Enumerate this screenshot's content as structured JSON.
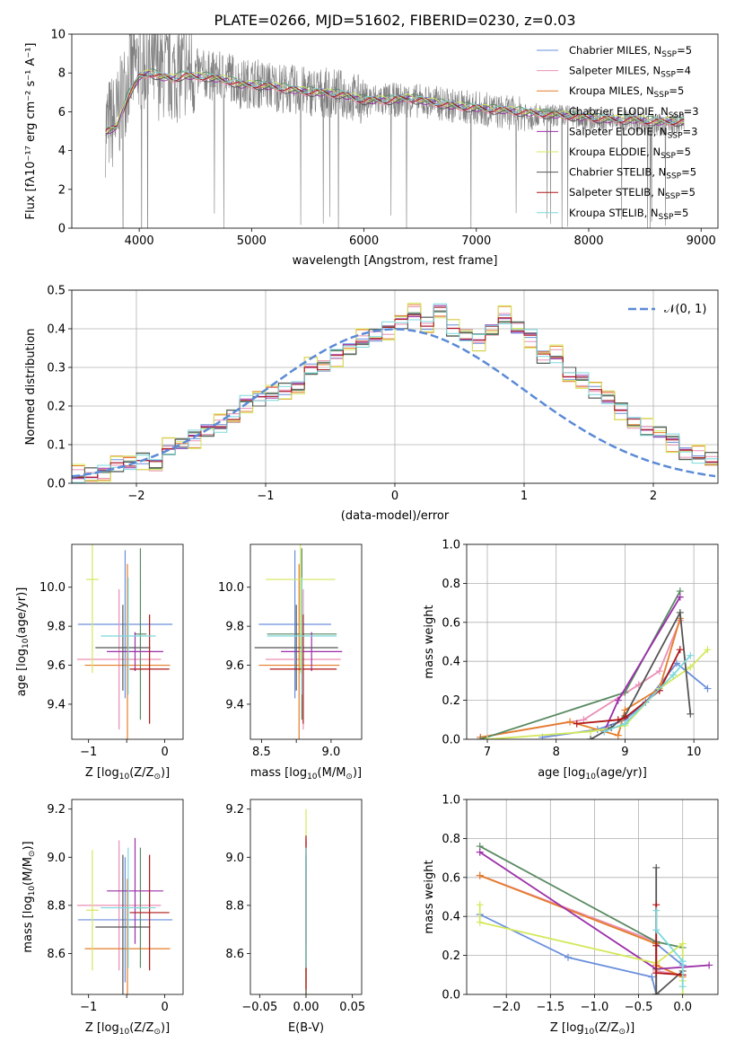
{
  "figure": {
    "title": "PLATE=0266, MJD=51602, FIBERID=0230, z=0.03"
  },
  "series_names": [
    "Chabrier MILES, N_SSP=5",
    "Salpeter MILES, N_SSP=4",
    "Kroupa MILES, N_SSP=5",
    "Chabrier ELODIE, N_SSP=3",
    "Salpeter ELODIE, N_SSP=3",
    "Kroupa ELODIE, N_SSP=5",
    "Chabrier STELIB, N_SSP=5",
    "Salpeter STELIB, N_SSP=5",
    "Kroupa STELIB, N_SSP=5"
  ],
  "series_colors": [
    "#6a8fdc",
    "#ea8fb4",
    "#e57d28",
    "#5a8a63",
    "#9b2fa8",
    "#d4e85a",
    "#555555",
    "#b01515",
    "#7ad8dc"
  ],
  "chart_data": [
    {
      "type": "line",
      "title": "PLATE=0266, MJD=51602, FIBERID=0230, z=0.03",
      "xlabel": "wavelength [Angstrom, rest frame]",
      "ylabel": "Flux [fλ10⁻¹⁷ erg cm⁻² s⁻¹ A⁻¹]",
      "xlim": [
        3400,
        9150
      ],
      "ylim": [
        0,
        10
      ],
      "xticks": [
        4000,
        5000,
        6000,
        7000,
        8000,
        9000
      ],
      "yticks": [
        0,
        2,
        4,
        6,
        8,
        10
      ],
      "grid": false,
      "legend_position": "top-right",
      "legend": [
        {
          "pre": "Chabrier MILES, N",
          "sub": "SSP",
          "post": "=5"
        },
        {
          "pre": "Salpeter MILES, N",
          "sub": "SSP",
          "post": "=4"
        },
        {
          "pre": "Kroupa MILES, N",
          "sub": "SSP",
          "post": "=5"
        },
        {
          "pre": "Chabrier ELODIE, N",
          "sub": "SSP",
          "post": "=3"
        },
        {
          "pre": "Salpeter ELODIE, N",
          "sub": "SSP",
          "post": "=3"
        },
        {
          "pre": "Kroupa ELODIE, N",
          "sub": "SSP",
          "post": "=5"
        },
        {
          "pre": "Chabrier STELIB, N",
          "sub": "SSP",
          "post": "=5"
        },
        {
          "pre": "Salpeter STELIB, N",
          "sub": "SSP",
          "post": "=5"
        },
        {
          "pre": "Kroupa STELIB, N",
          "sub": "SSP",
          "post": "=5"
        }
      ],
      "data_wavelength": [
        3700,
        3800,
        3900,
        4000,
        4100,
        4200,
        4300,
        4400,
        4500,
        4600,
        4700,
        4800,
        4900,
        5000,
        5200,
        5400,
        5600,
        5800,
        6000,
        6200,
        6400,
        6600,
        6800,
        7000,
        7200,
        7400,
        7600,
        7800,
        8000,
        8200,
        8400,
        8600,
        8800
      ],
      "data_flux": [
        5.2,
        5.6,
        7.8,
        8.6,
        8.2,
        8.1,
        7.9,
        8.2,
        8.0,
        7.9,
        7.8,
        7.9,
        7.4,
        7.5,
        7.3,
        7.1,
        7.0,
        6.9,
        6.6,
        6.6,
        6.6,
        6.5,
        6.3,
        6.2,
        6.0,
        5.9,
        5.8,
        5.8,
        5.6,
        5.5,
        5.6,
        5.3,
        5.4
      ],
      "model_flux": [
        5.0,
        5.2,
        6.8,
        7.8,
        8.0,
        7.8,
        7.7,
        7.9,
        7.8,
        7.8,
        7.7,
        7.6,
        7.4,
        7.4,
        7.3,
        7.1,
        7.0,
        6.9,
        6.6,
        6.6,
        6.7,
        6.5,
        6.3,
        6.2,
        6.1,
        6.0,
        5.9,
        5.8,
        5.7,
        5.6,
        5.6,
        5.5,
        5.5
      ]
    },
    {
      "type": "step",
      "xlabel": "(data-model)/error",
      "ylabel": "Normed distribution",
      "xlim": [
        -2.5,
        2.5
      ],
      "ylim": [
        0,
        0.5
      ],
      "xticks": [
        -2,
        -1,
        0,
        1,
        2
      ],
      "yticks": [
        0.0,
        0.1,
        0.2,
        0.3,
        0.4,
        0.5
      ],
      "grid": true,
      "legend_position": "top-right",
      "reference_curve": {
        "name": "N(0,1)",
        "label": "𝒩(0, 1)"
      },
      "bin_edges_start": -2.5,
      "bin_width": 0.1,
      "histogram_values": [
        0.02,
        0.02,
        0.03,
        0.05,
        0.05,
        0.06,
        0.05,
        0.09,
        0.1,
        0.12,
        0.14,
        0.15,
        0.17,
        0.21,
        0.22,
        0.23,
        0.24,
        0.25,
        0.3,
        0.3,
        0.33,
        0.35,
        0.37,
        0.38,
        0.4,
        0.42,
        0.44,
        0.41,
        0.45,
        0.4,
        0.38,
        0.37,
        0.4,
        0.43,
        0.4,
        0.38,
        0.33,
        0.33,
        0.28,
        0.27,
        0.24,
        0.22,
        0.19,
        0.16,
        0.14,
        0.13,
        0.11,
        0.08,
        0.07,
        0.06,
        0.05,
        0.04,
        0.03,
        0.02,
        0.02
      ]
    },
    {
      "type": "errorbar",
      "xlabel_pre": "Z [log",
      "xlabel_sub": "10",
      "xlabel_post": "(Z/Z",
      "xlabel_end": ")]",
      "ylabel_pre": "age  [log",
      "ylabel_sub": "10",
      "ylabel_post": "(age/yr)]",
      "xlim": [
        -1.22,
        0.24
      ],
      "ylim": [
        9.22,
        10.22
      ],
      "xticks": [
        -1,
        -0.5,
        0
      ],
      "xtick_labels": [
        "−1",
        "",
        "0"
      ],
      "yticks": [
        9.4,
        9.6,
        9.8,
        10.0
      ],
      "grid": false,
      "points": [
        {
          "x": -0.52,
          "y": 9.81,
          "xerr": 0.62,
          "yerr": 0.38
        },
        {
          "x": -0.6,
          "y": 9.63,
          "xerr": 0.55,
          "yerr": 0.36
        },
        {
          "x": -0.49,
          "y": 9.6,
          "xerr": 0.56,
          "yerr": 0.52
        },
        {
          "x": -0.32,
          "y": 9.76,
          "xerr": 0.08,
          "yerr": 0.44
        },
        {
          "x": -0.39,
          "y": 9.67,
          "xerr": 0.37,
          "yerr": 0.1
        },
        {
          "x": -0.95,
          "y": 10.04,
          "xerr": 0.08,
          "yerr": 0.48
        },
        {
          "x": -0.55,
          "y": 9.69,
          "xerr": 0.36,
          "yerr": 0.22
        },
        {
          "x": -0.2,
          "y": 9.58,
          "xerr": 0.26,
          "yerr": 0.28
        },
        {
          "x": -0.48,
          "y": 9.75,
          "xerr": 0.36,
          "yerr": 0.3
        }
      ]
    },
    {
      "type": "errorbar",
      "xlabel_pre": "mass [log",
      "xlabel_sub": "10",
      "xlabel_post": "(M/M",
      "xlabel_end": ")]",
      "xlim": [
        8.42,
        9.22
      ],
      "ylim": [
        9.22,
        10.22
      ],
      "xticks": [
        8.5,
        8.75,
        9.0
      ],
      "xtick_labels": [
        "8.5",
        "",
        "9.0"
      ],
      "yticks": [
        9.4,
        9.6,
        9.8,
        10.0
      ],
      "grid": false,
      "points": [
        {
          "x": 8.74,
          "y": 9.81,
          "xerr": 0.26,
          "yerr": 0.38
        },
        {
          "x": 8.8,
          "y": 9.63,
          "xerr": 0.27,
          "yerr": 0.36
        },
        {
          "x": 8.77,
          "y": 9.6,
          "xerr": 0.29,
          "yerr": 0.52
        },
        {
          "x": 8.79,
          "y": 9.76,
          "xerr": 0.25,
          "yerr": 0.44
        },
        {
          "x": 8.86,
          "y": 9.67,
          "xerr": 0.22,
          "yerr": 0.1
        },
        {
          "x": 8.78,
          "y": 10.04,
          "xerr": 0.25,
          "yerr": 0.48
        },
        {
          "x": 8.75,
          "y": 9.69,
          "xerr": 0.3,
          "yerr": 0.22
        },
        {
          "x": 8.8,
          "y": 9.58,
          "xerr": 0.24,
          "yerr": 0.28
        },
        {
          "x": 8.79,
          "y": 9.75,
          "xerr": 0.25,
          "yerr": 0.3
        }
      ]
    },
    {
      "type": "line",
      "xlabel_pre": "age  [log",
      "xlabel_sub": "10",
      "xlabel_post": "(age/yr)]",
      "ylabel": "mass weight",
      "xlim": [
        6.7,
        10.35
      ],
      "ylim": [
        0,
        1.0
      ],
      "xticks": [
        7,
        8,
        9,
        10
      ],
      "yticks": [
        0.0,
        0.2,
        0.4,
        0.6,
        0.8,
        1.0
      ],
      "grid": true,
      "series": [
        {
          "x": [
            7.8,
            8.6,
            9.0,
            9.3,
            9.75,
            10.2
          ],
          "y": [
            0.01,
            0.05,
            0.1,
            0.19,
            0.39,
            0.26
          ]
        },
        {
          "x": [
            6.9,
            8.4,
            9.2,
            9.5,
            9.8
          ],
          "y": [
            0.01,
            0.1,
            0.28,
            0.35,
            0.61
          ]
        },
        {
          "x": [
            6.9,
            8.2,
            8.9,
            9.0,
            9.5,
            9.8
          ],
          "y": [
            0.01,
            0.09,
            0.02,
            0.15,
            0.26,
            0.62
          ]
        },
        {
          "x": [
            6.9,
            9.0,
            9.8
          ],
          "y": [
            0.0,
            0.24,
            0.76
          ]
        },
        {
          "x": [
            8.7,
            8.9,
            9.8
          ],
          "y": [
            0.04,
            0.2,
            0.73
          ]
        },
        {
          "x": [
            7.0,
            8.5,
            9.0,
            9.5,
            9.95,
            10.2
          ],
          "y": [
            0.0,
            0.04,
            0.07,
            0.26,
            0.37,
            0.46
          ]
        },
        {
          "x": [
            8.5,
            8.8,
            9.0,
            9.8,
            9.95
          ],
          "y": [
            0.0,
            0.06,
            0.12,
            0.65,
            0.13
          ]
        },
        {
          "x": [
            8.3,
            8.9,
            9.0,
            9.5,
            9.8
          ],
          "y": [
            0.08,
            0.1,
            0.11,
            0.25,
            0.46
          ]
        },
        {
          "x": [
            8.7,
            9.0,
            9.7,
            9.95
          ],
          "y": [
            0.04,
            0.08,
            0.33,
            0.43
          ]
        }
      ]
    },
    {
      "type": "errorbar",
      "xlabel_pre": "Z [log",
      "xlabel_sub": "10",
      "xlabel_post": "(Z/Z",
      "xlabel_end": ")]",
      "ylabel_pre": "mass [log",
      "ylabel_sub": "10",
      "ylabel_post": "(M/M",
      "ylabel_end": ")]",
      "xlim": [
        -1.22,
        0.24
      ],
      "ylim": [
        8.43,
        9.24
      ],
      "xticks": [
        -1,
        -0.5,
        0
      ],
      "xtick_labels": [
        "−1",
        "",
        "0"
      ],
      "yticks": [
        8.6,
        8.8,
        9.0,
        9.2
      ],
      "grid": false,
      "points": [
        {
          "x": -0.52,
          "y": 8.74,
          "xerr": 0.62,
          "yerr": 0.26
        },
        {
          "x": -0.6,
          "y": 8.8,
          "xerr": 0.55,
          "yerr": 0.27
        },
        {
          "x": -0.49,
          "y": 8.62,
          "xerr": 0.56,
          "yerr": 0.29
        },
        {
          "x": -0.32,
          "y": 8.79,
          "xerr": 0.08,
          "yerr": 0.25
        },
        {
          "x": -0.39,
          "y": 8.86,
          "xerr": 0.37,
          "yerr": 0.22
        },
        {
          "x": -0.95,
          "y": 8.78,
          "xerr": 0.08,
          "yerr": 0.25
        },
        {
          "x": -0.55,
          "y": 8.71,
          "xerr": 0.36,
          "yerr": 0.3
        },
        {
          "x": -0.2,
          "y": 8.77,
          "xerr": 0.26,
          "yerr": 0.24
        },
        {
          "x": -0.48,
          "y": 8.79,
          "xerr": 0.36,
          "yerr": 0.25
        }
      ]
    },
    {
      "type": "errorbar",
      "xlabel": "E(B-V)",
      "xlim": [
        -0.06,
        0.06
      ],
      "ylim": [
        8.43,
        9.24
      ],
      "xticks": [
        -0.05,
        0.0,
        0.05
      ],
      "xtick_labels": [
        "−0.05",
        "0.00",
        "0.05"
      ],
      "yticks": [
        8.6,
        8.8,
        9.0,
        9.2
      ],
      "grid": false,
      "points": [
        {
          "x": 0.0,
          "y": 8.74,
          "xerr": 0.0,
          "yerr": 0.26
        },
        {
          "x": 0.0,
          "y": 8.8,
          "xerr": 0.0,
          "yerr": 0.27
        },
        {
          "x": 0.0,
          "y": 8.62,
          "xerr": 0.0,
          "yerr": 0.29
        },
        {
          "x": 0.0,
          "y": 8.79,
          "xerr": 0.0,
          "yerr": 0.25
        },
        {
          "x": 0.0,
          "y": 8.86,
          "xerr": 0.0,
          "yerr": 0.22
        },
        {
          "x": 0.0,
          "y": 8.78,
          "xerr": 0.0,
          "yerr": 0.42
        },
        {
          "x": 0.0,
          "y": 8.71,
          "xerr": 0.0,
          "yerr": 0.3
        },
        {
          "x": 0.0,
          "y": 8.77,
          "xerr": 0.0,
          "yerr": 0.32
        },
        {
          "x": 0.0,
          "y": 8.79,
          "xerr": 0.0,
          "yerr": 0.25
        }
      ]
    },
    {
      "type": "line",
      "xlabel_pre": "Z [log",
      "xlabel_sub": "10",
      "xlabel_post": "(Z/Z",
      "xlabel_end": ")]",
      "ylabel": "mass weight",
      "xlim": [
        -2.45,
        0.4
      ],
      "ylim": [
        0,
        1.0
      ],
      "xticks": [
        -2.0,
        -1.5,
        -1.0,
        -0.5,
        0.0
      ],
      "xtick_labels": [
        "−2.0",
        "−1.5",
        "−1.0",
        "−0.5",
        "0.0"
      ],
      "yticks": [
        0.0,
        0.2,
        0.4,
        0.6,
        0.8,
        1.0
      ],
      "grid": true,
      "series": [
        {
          "x": [
            -2.3,
            -1.3,
            -0.35,
            -0.3,
            -0.3,
            0.0
          ],
          "y": [
            0.41,
            0.19,
            0.09,
            0.0,
            0.26,
            0.15
          ]
        },
        {
          "x": [
            -2.3,
            -0.3,
            -0.3,
            0.0
          ],
          "y": [
            0.61,
            0.27,
            0.12,
            0.1
          ]
        },
        {
          "x": [
            -2.3,
            -0.3,
            -0.3,
            -0.3,
            0.0
          ],
          "y": [
            0.61,
            0.26,
            0.0,
            0.15,
            0.09
          ]
        },
        {
          "x": [
            -2.3,
            -0.3,
            0.0
          ],
          "y": [
            0.76,
            0.27,
            0.24
          ]
        },
        {
          "x": [
            -2.3,
            -0.3,
            0.3
          ],
          "y": [
            0.73,
            0.13,
            0.15
          ]
        },
        {
          "x": [
            -2.3,
            -2.3,
            -0.3,
            0.0,
            0.0,
            0.0
          ],
          "y": [
            0.46,
            0.37,
            0.16,
            0.26,
            0.07,
            0.0
          ]
        },
        {
          "x": [
            -0.3,
            -0.3,
            -0.3,
            0.0
          ],
          "y": [
            0.65,
            0.13,
            0.0,
            0.12
          ]
        },
        {
          "x": [
            -0.3,
            -0.3,
            -0.3,
            0.0
          ],
          "y": [
            0.46,
            0.25,
            0.11,
            0.1
          ]
        },
        {
          "x": [
            -0.3,
            -0.3,
            0.0,
            0.0
          ],
          "y": [
            0.43,
            0.33,
            0.17,
            0.04
          ]
        }
      ]
    }
  ]
}
